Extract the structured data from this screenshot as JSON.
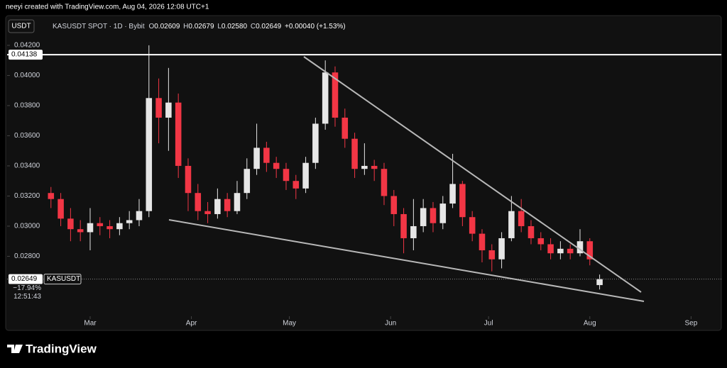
{
  "chart_data": {
    "type": "candlestick",
    "header": "neeyi created with TradingView.com, Aug 04, 2026 12:08 UTC+1",
    "currency": "USDT",
    "symbol": "KASUSDT SPOT · 1D · Bybit",
    "ohlc_legend": {
      "o_label": "O",
      "open": "0.02609",
      "h_label": "H",
      "high": "0.02679",
      "l_label": "L",
      "low": "0.02580",
      "c_label": "C",
      "close": "0.02649",
      "change": "+0.00040 (+1.53%)"
    },
    "up_color": "#e6e6e6",
    "down_color": "#f23645",
    "x": [
      1,
      4,
      7,
      10,
      13,
      16,
      19,
      22,
      25,
      28,
      31,
      34,
      37,
      40,
      43,
      46,
      49,
      52,
      55,
      58,
      61,
      64,
      67,
      70,
      73,
      76,
      79,
      82,
      85,
      88,
      91,
      94,
      97,
      100,
      103,
      106,
      109,
      112,
      115,
      118,
      121,
      124,
      127,
      130,
      133,
      136,
      139,
      142,
      145,
      148,
      151,
      154,
      157,
      160,
      163,
      166,
      169
    ],
    "candles": [
      [
        0.0322,
        0.0326,
        0.0312,
        0.0318
      ],
      [
        0.0318,
        0.0322,
        0.03,
        0.0305
      ],
      [
        0.0305,
        0.0312,
        0.029,
        0.0298
      ],
      [
        0.0298,
        0.0304,
        0.029,
        0.0296
      ],
      [
        0.0296,
        0.0312,
        0.0284,
        0.0302
      ],
      [
        0.0302,
        0.0306,
        0.0294,
        0.03
      ],
      [
        0.03,
        0.0304,
        0.0292,
        0.0298
      ],
      [
        0.0298,
        0.0306,
        0.0294,
        0.0302
      ],
      [
        0.0302,
        0.031,
        0.0298,
        0.0304
      ],
      [
        0.0304,
        0.0318,
        0.03,
        0.031
      ],
      [
        0.031,
        0.042,
        0.0306,
        0.0385
      ],
      [
        0.0385,
        0.0398,
        0.0355,
        0.0372
      ],
      [
        0.0372,
        0.0405,
        0.035,
        0.0382
      ],
      [
        0.0382,
        0.0388,
        0.0332,
        0.034
      ],
      [
        0.034,
        0.0345,
        0.031,
        0.0322
      ],
      [
        0.0322,
        0.0328,
        0.0304,
        0.031
      ],
      [
        0.031,
        0.0316,
        0.0302,
        0.0308
      ],
      [
        0.0308,
        0.0325,
        0.0305,
        0.0318
      ],
      [
        0.0318,
        0.0322,
        0.0306,
        0.031
      ],
      [
        0.031,
        0.033,
        0.0308,
        0.0322
      ],
      [
        0.0322,
        0.0345,
        0.0318,
        0.0338
      ],
      [
        0.0338,
        0.0368,
        0.0334,
        0.0352
      ],
      [
        0.0352,
        0.0356,
        0.0336,
        0.0342
      ],
      [
        0.0342,
        0.0346,
        0.0332,
        0.0338
      ],
      [
        0.0338,
        0.0342,
        0.0324,
        0.033
      ],
      [
        0.033,
        0.0334,
        0.0318,
        0.0325
      ],
      [
        0.0325,
        0.0346,
        0.0322,
        0.0342
      ],
      [
        0.0342,
        0.0372,
        0.0338,
        0.0368
      ],
      [
        0.0368,
        0.041,
        0.0364,
        0.0402
      ],
      [
        0.0402,
        0.0406,
        0.0366,
        0.0372
      ],
      [
        0.0372,
        0.0378,
        0.0352,
        0.0358
      ],
      [
        0.0358,
        0.0362,
        0.0332,
        0.0338
      ],
      [
        0.0338,
        0.0355,
        0.0334,
        0.034
      ],
      [
        0.034,
        0.0344,
        0.033,
        0.0338
      ],
      [
        0.0338,
        0.0342,
        0.0314,
        0.032
      ],
      [
        0.032,
        0.0324,
        0.03,
        0.0308
      ],
      [
        0.0308,
        0.0312,
        0.0282,
        0.0292
      ],
      [
        0.0292,
        0.0318,
        0.0284,
        0.03
      ],
      [
        0.03,
        0.0318,
        0.0296,
        0.0312
      ],
      [
        0.0312,
        0.0316,
        0.0296,
        0.0302
      ],
      [
        0.0302,
        0.032,
        0.0298,
        0.0315
      ],
      [
        0.0315,
        0.0348,
        0.0312,
        0.0328
      ],
      [
        0.0328,
        0.033,
        0.03,
        0.0306
      ],
      [
        0.0306,
        0.031,
        0.029,
        0.0295
      ],
      [
        0.0295,
        0.0298,
        0.0276,
        0.0284
      ],
      [
        0.0284,
        0.0288,
        0.027,
        0.0278
      ],
      [
        0.0278,
        0.0296,
        0.0272,
        0.0292
      ],
      [
        0.0292,
        0.032,
        0.029,
        0.031
      ],
      [
        0.031,
        0.0318,
        0.0296,
        0.03
      ],
      [
        0.03,
        0.0304,
        0.0288,
        0.0292
      ],
      [
        0.0292,
        0.0296,
        0.0284,
        0.0288
      ],
      [
        0.0288,
        0.0292,
        0.0278,
        0.0282
      ],
      [
        0.0282,
        0.029,
        0.0278,
        0.0285
      ],
      [
        0.0285,
        0.0288,
        0.0278,
        0.0282
      ],
      [
        0.0282,
        0.0298,
        0.028,
        0.029
      ],
      [
        0.029,
        0.0292,
        0.0274,
        0.0278
      ],
      [
        0.02609,
        0.02679,
        0.0258,
        0.02649
      ]
    ],
    "xlim": [
      -12.43,
      205.83
    ],
    "xticks": [
      {
        "value": 13,
        "label": "Mar"
      },
      {
        "value": 44,
        "label": "Apr"
      },
      {
        "value": 74,
        "label": "May"
      },
      {
        "value": 105,
        "label": "Jun"
      },
      {
        "value": 135,
        "label": "Jul"
      },
      {
        "value": 166,
        "label": "Aug"
      },
      {
        "value": 197,
        "label": "Sep"
      }
    ],
    "ylim": [
      0.02407,
      0.04289
    ],
    "yticks": [
      {
        "value": 0.028,
        "label": "0.02800"
      },
      {
        "value": 0.03,
        "label": "0.03000"
      },
      {
        "value": 0.032,
        "label": "0.03200"
      },
      {
        "value": 0.034,
        "label": "0.03400"
      },
      {
        "value": 0.036,
        "label": "0.03600"
      },
      {
        "value": 0.038,
        "label": "0.03800"
      },
      {
        "value": 0.04,
        "label": "0.04000"
      },
      {
        "value": 0.042,
        "label": "0.04200"
      }
    ],
    "hline": 0.04138,
    "last_price": {
      "price": "0.02649",
      "symbol": "KASUSDT",
      "change": "−17.94%",
      "countdown": "12:51:43"
    },
    "brand": "TradingView"
  }
}
